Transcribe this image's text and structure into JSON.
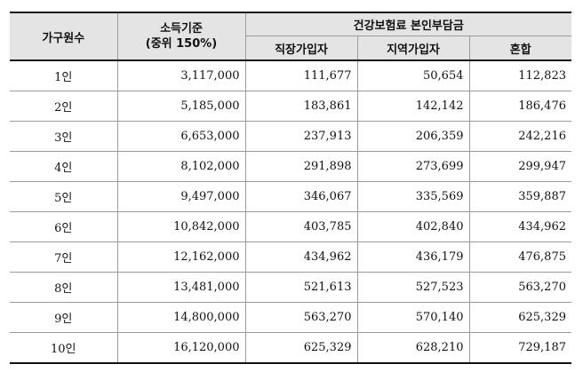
{
  "table": {
    "headers": {
      "household": "가구원수",
      "income_line1": "소득기준",
      "income_line2": "(중위 150%)",
      "insurance": "건강보험료 본인부담금",
      "employee": "직장가입자",
      "regional": "지역가입자",
      "mixed": "혼합"
    },
    "rows": [
      {
        "household": "1인",
        "income": "3,117,000",
        "employee": "111,677",
        "regional": "50,654",
        "mixed": "112,823"
      },
      {
        "household": "2인",
        "income": "5,185,000",
        "employee": "183,861",
        "regional": "142,142",
        "mixed": "186,476"
      },
      {
        "household": "3인",
        "income": "6,653,000",
        "employee": "237,913",
        "regional": "206,359",
        "mixed": "242,216"
      },
      {
        "household": "4인",
        "income": "8,102,000",
        "employee": "291,898",
        "regional": "273,699",
        "mixed": "299,947"
      },
      {
        "household": "5인",
        "income": "9,497,000",
        "employee": "346,067",
        "regional": "335,569",
        "mixed": "359,887"
      },
      {
        "household": "6인",
        "income": "10,842,000",
        "employee": "403,785",
        "regional": "402,840",
        "mixed": "434,962"
      },
      {
        "household": "7인",
        "income": "12,162,000",
        "employee": "434,962",
        "regional": "436,179",
        "mixed": "476,875"
      },
      {
        "household": "8인",
        "income": "13,481,000",
        "employee": "521,613",
        "regional": "527,523",
        "mixed": "563,270"
      },
      {
        "household": "9인",
        "income": "14,800,000",
        "employee": "563,270",
        "regional": "570,140",
        "mixed": "625,329"
      },
      {
        "household": "10인",
        "income": "16,120,000",
        "employee": "625,329",
        "regional": "628,210",
        "mixed": "729,187"
      }
    ]
  }
}
